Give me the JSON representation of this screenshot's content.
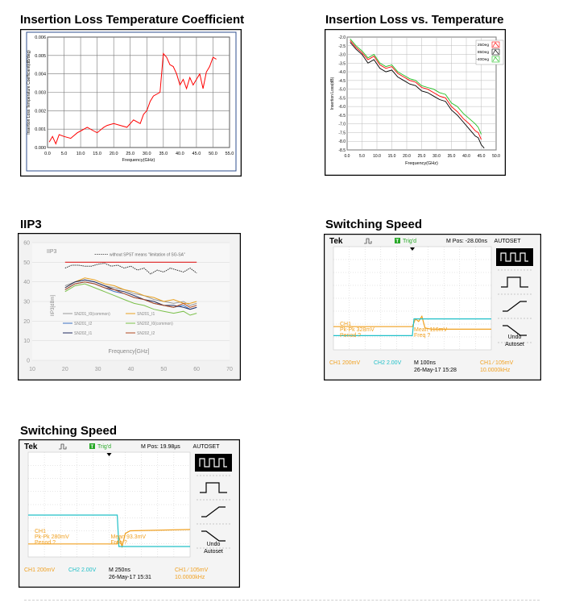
{
  "charts": [
    {
      "panel_title": "Insertion Loss Temperature Coefficient",
      "chart_data": {
        "type": "line",
        "title": "",
        "xlabel": "Frequency(GHz)",
        "ylabel": "Insertion Loss Temperature Coefficient(dB/deg)",
        "xlim": [
          0,
          55
        ],
        "ylim": [
          0,
          0.006
        ],
        "xticks": [
          "0.0",
          "5.0",
          "10.0",
          "15.0",
          "20.0",
          "25.0",
          "30.0",
          "35.0",
          "40.0",
          "45.0",
          "50.0",
          "55.0"
        ],
        "yticks": [
          "0.000",
          "0.001",
          "0.002",
          "0.003",
          "0.004",
          "0.005",
          "0.006"
        ],
        "grid": true,
        "series": [
          {
            "color": "#ff0000",
            "x": [
              0.5,
              1.5,
              2.5,
              3.5,
              5,
              7,
              9,
              10,
              12,
              14,
              15,
              17,
              18,
              20,
              22,
              24,
              26,
              28,
              29,
              30,
              31,
              32,
              34,
              35,
              36,
              37,
              38,
              39,
              40,
              41,
              42,
              43,
              44,
              45,
              46,
              47,
              48,
              49,
              50,
              51
            ],
            "y": [
              0.0003,
              0.0006,
              0.0002,
              0.0007,
              0.0006,
              0.0005,
              0.0008,
              0.0009,
              0.0011,
              0.0009,
              0.0008,
              0.0011,
              0.0012,
              0.0013,
              0.0012,
              0.0011,
              0.0015,
              0.0013,
              0.0018,
              0.002,
              0.0025,
              0.0028,
              0.003,
              0.0051,
              0.0049,
              0.0045,
              0.0044,
              0.004,
              0.0034,
              0.0037,
              0.0032,
              0.0038,
              0.0034,
              0.0037,
              0.004,
              0.0032,
              0.0041,
              0.0044,
              0.0049,
              0.0048
            ]
          }
        ]
      }
    },
    {
      "panel_title": "Insertion Loss vs. Temperature",
      "chart_data": {
        "type": "line",
        "title": "",
        "xlabel": "Frequency(GHz)",
        "ylabel": "Insertion Loss(dB)",
        "xlim": [
          0,
          50
        ],
        "ylim": [
          -8.5,
          -2.0
        ],
        "xticks": [
          "0.0",
          "5.0",
          "10.0",
          "15.0",
          "20.0",
          "25.0",
          "30.0",
          "35.0",
          "40.0",
          "45.0",
          "50.0"
        ],
        "yticks": [
          "-2.0",
          "-2.5",
          "-3.0",
          "-3.5",
          "-4.0",
          "-4.5",
          "-5.0",
          "-5.5",
          "-6.0",
          "-6.5",
          "-7.0",
          "-7.5",
          "-8.0",
          "-8.5"
        ],
        "legend": "top-right",
        "grid": true,
        "series": [
          {
            "name": "25Deg",
            "color": "#ff0000",
            "x": [
              1,
              3,
              5,
              7,
              9,
              11,
              13,
              15,
              17,
              19,
              21,
              23,
              25,
              27,
              29,
              31,
              33,
              35,
              37,
              39,
              41,
              43,
              44,
              45
            ],
            "y": [
              -2.2,
              -2.6,
              -2.9,
              -3.3,
              -3.1,
              -3.6,
              -3.8,
              -3.7,
              -4.1,
              -4.3,
              -4.5,
              -4.6,
              -4.9,
              -5.0,
              -5.2,
              -5.4,
              -5.5,
              -6.0,
              -6.3,
              -6.7,
              -7.0,
              -7.4,
              -7.5,
              -7.9
            ]
          },
          {
            "name": "85Deg",
            "color": "#000000",
            "x": [
              1,
              3,
              5,
              7,
              9,
              11,
              13,
              15,
              17,
              19,
              21,
              23,
              25,
              27,
              29,
              31,
              33,
              35,
              37,
              39,
              41,
              43,
              44,
              45,
              46
            ],
            "y": [
              -2.3,
              -2.7,
              -3.0,
              -3.5,
              -3.3,
              -3.8,
              -4.0,
              -3.9,
              -4.3,
              -4.5,
              -4.7,
              -4.8,
              -5.1,
              -5.2,
              -5.4,
              -5.6,
              -5.7,
              -6.2,
              -6.5,
              -6.9,
              -7.3,
              -7.7,
              -7.8,
              -8.2,
              -8.4
            ]
          },
          {
            "name": "-40Deg",
            "color": "#22c022",
            "x": [
              1,
              3,
              5,
              7,
              9,
              11,
              13,
              15,
              17,
              19,
              21,
              23,
              25,
              27,
              29,
              31,
              33,
              35,
              37,
              39,
              41,
              43,
              44,
              45
            ],
            "y": [
              -2.1,
              -2.5,
              -2.8,
              -3.2,
              -3.0,
              -3.5,
              -3.7,
              -3.6,
              -4.0,
              -4.2,
              -4.4,
              -4.5,
              -4.8,
              -4.9,
              -5.0,
              -5.2,
              -5.3,
              -5.8,
              -6.0,
              -6.4,
              -6.7,
              -7.0,
              -7.2,
              -7.6
            ]
          }
        ]
      }
    },
    {
      "panel_title": "IIP3",
      "chart_data": {
        "type": "line",
        "title": "IIP3",
        "xlabel": "Frequency[GHz]",
        "ylabel": "IIP3[dBm]",
        "xlim": [
          10,
          70
        ],
        "ylim": [
          0,
          60
        ],
        "xticks": [
          "10",
          "20",
          "30",
          "40",
          "50",
          "60",
          "70"
        ],
        "yticks": [
          "0",
          "10",
          "20",
          "30",
          "40",
          "50",
          "60"
        ],
        "grid": true,
        "legend": "bottom-left",
        "annotation": "without SPST means \"limitation of SG-SA\"",
        "series": [
          {
            "name": "without SPST",
            "color": "#333333",
            "dashed": true,
            "x": [
              20,
              22,
              24,
              26,
              28,
              30,
              32,
              34,
              36,
              38,
              40,
              42,
              44,
              46,
              48,
              50,
              52,
              54,
              56,
              58,
              60
            ],
            "y": [
              47,
              48.5,
              48.5,
              48,
              48,
              49,
              49.5,
              48,
              48.5,
              47,
              48,
              46,
              47,
              44,
              46,
              45,
              47,
              46,
              45,
              47,
              44.5
            ]
          },
          {
            "name": "limit",
            "color": "#e02020",
            "x": [
              20,
              60
            ],
            "y": [
              50,
              50
            ]
          },
          {
            "name": "SN201_I0(common)",
            "color": "#9a9a9a",
            "x": [
              20,
              23,
              26,
              29,
              32,
              35,
              38,
              41,
              44,
              47,
              50,
              53,
              56,
              58,
              60
            ],
            "y": [
              38,
              40,
              41,
              40,
              38,
              37,
              36,
              34,
              33,
              31,
              30,
              29,
              30,
              28,
              29
            ]
          },
          {
            "name": "SN201_I1",
            "color": "#e8a020",
            "x": [
              20,
              23,
              26,
              29,
              32,
              35,
              38,
              41,
              44,
              47,
              50,
              53,
              56,
              58,
              60
            ],
            "y": [
              37,
              40,
              42,
              41,
              39,
              38,
              36,
              35,
              33,
              32,
              30,
              31,
              29,
              29,
              30
            ]
          },
          {
            "name": "SN201_I2",
            "color": "#3a6fc0",
            "x": [
              20,
              23,
              26,
              29,
              32,
              35,
              38,
              41,
              44,
              47,
              50,
              53,
              56,
              58,
              60
            ],
            "y": [
              36,
              39,
              40,
              39,
              37,
              35,
              34,
              32,
              31,
              29,
              28,
              27,
              28,
              26,
              27
            ]
          },
          {
            "name": "SN202_I0(common)",
            "color": "#7bc04a",
            "x": [
              20,
              23,
              26,
              29,
              32,
              35,
              38,
              41,
              44,
              47,
              50,
              53,
              56,
              58,
              60
            ],
            "y": [
              35,
              38,
              39,
              37,
              35,
              33,
              31,
              29,
              28,
              26,
              25,
              24,
              25,
              23,
              24
            ]
          },
          {
            "name": "SN202_I1",
            "color": "#1f2a5c",
            "x": [
              20,
              23,
              26,
              29,
              32,
              35,
              38,
              41,
              44,
              47,
              50,
              53,
              56,
              58,
              60
            ],
            "y": [
              37,
              40,
              41,
              40,
              38,
              36,
              35,
              33,
              31,
              30,
              28,
              28,
              27,
              26,
              27
            ]
          },
          {
            "name": "SN202_I2",
            "color": "#b04a20",
            "x": [
              20,
              23,
              26,
              29,
              32,
              35,
              38,
              41,
              44,
              47,
              50,
              53,
              56,
              58,
              60
            ],
            "y": [
              36,
              39,
              40,
              39,
              37,
              36,
              34,
              32,
              31,
              29,
              28,
              27,
              29,
              27,
              28
            ]
          }
        ]
      }
    },
    {
      "panel_title": "Switching Speed",
      "scope": {
        "brand": "Tek",
        "trig": "Trig'd",
        "mpos": "M Pos: -28.00ns",
        "menu_title": "AUTOSET",
        "undo_label": "Undo",
        "autoset_label": "Autoset",
        "meas1": "CH1",
        "meas2": "Pk-Pk 328mV",
        "meas3": "Period ?",
        "meas4": "Mean 116mV",
        "meas5": "Freq ?",
        "ch1": "CH1  200mV",
        "ch2": "CH2  2.00V",
        "timebase": "M 100ns",
        "date": "26-May-17 15:28",
        "trig_info": "CH1 ∕ 105mV",
        "freq": "10.0000kHz"
      },
      "chart_data": {
        "type": "line",
        "series": [
          {
            "name": "CH1",
            "color": "#f0a020",
            "x": [
              0,
              5,
              5.2,
              5.4,
              5.6,
              5.8,
              6.2,
              10
            ],
            "y": [
              1.8,
              1.8,
              2.4,
              2.2,
              2.6,
              1.7,
              1.6,
              1.6
            ]
          },
          {
            "name": "CH2",
            "color": "#20c0c8",
            "x": [
              0,
              5,
              5.1,
              10
            ],
            "y": [
              1.1,
              1.1,
              2.4,
              2.4
            ]
          }
        ]
      }
    },
    {
      "panel_title": "Switching Speed",
      "scope": {
        "brand": "Tek",
        "trig": "Trig'd",
        "mpos": "M Pos: 19.98µs",
        "menu_title": "AUTOSET",
        "undo_label": "Undo",
        "autoset_label": "Autoset",
        "meas1": "CH1",
        "meas2": "Pk-Pk 280mV",
        "meas3": "Period ?",
        "meas4": "Mean 93.3mV",
        "meas5": "Freq ?",
        "ch1": "CH1  200mV",
        "ch2": "CH2  2.00V",
        "timebase": "M 250ns",
        "date": "26-May-17 15:31",
        "trig_info": "CH1 ∕ 105mV",
        "freq": "10.0000kHz"
      },
      "chart_data": {
        "type": "line",
        "series": [
          {
            "name": "CH1",
            "color": "#f0a020",
            "x": [
              0,
              5.5,
              5.6,
              5.8,
              6.0,
              6.3,
              10
            ],
            "y": [
              1.0,
              1.0,
              1.5,
              0.8,
              1.8,
              2.0,
              2.1
            ]
          },
          {
            "name": "CH2",
            "color": "#20c0c8",
            "x": [
              0,
              5.5,
              5.6,
              10
            ],
            "y": [
              3.2,
              3.2,
              0.8,
              0.8
            ]
          }
        ]
      }
    }
  ]
}
